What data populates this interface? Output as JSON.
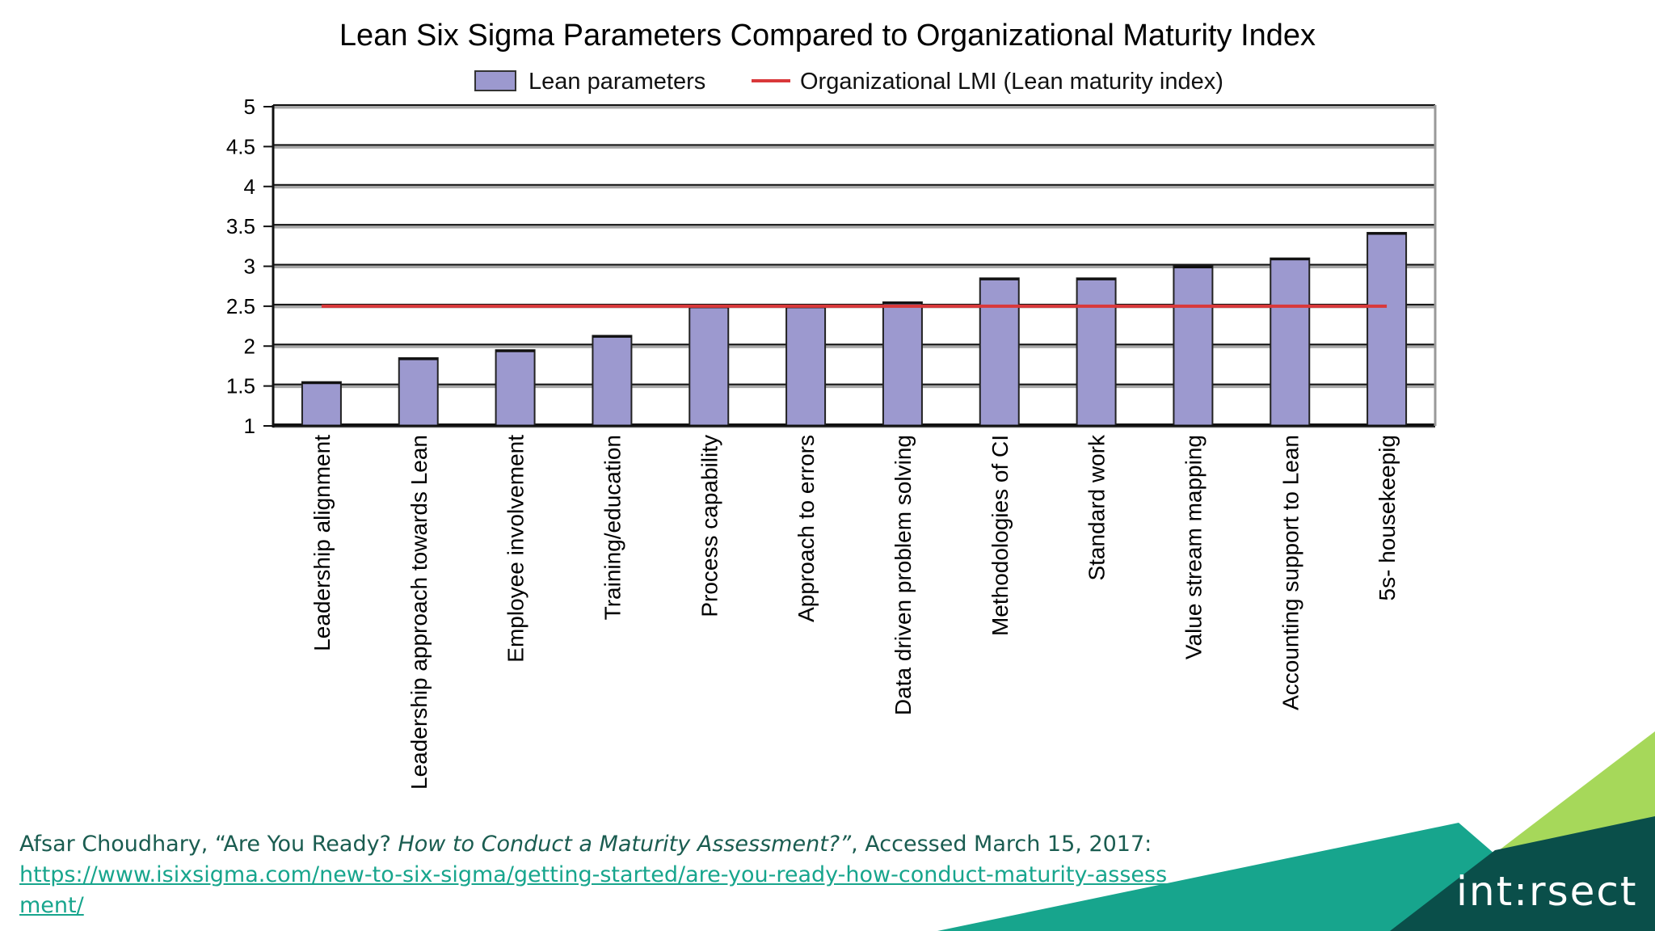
{
  "chart_data": {
    "type": "bar",
    "title": "Lean Six Sigma Parameters Compared to Organizational Maturity Index",
    "categories": [
      "Leadership alignment",
      "Leadership approach towards Lean",
      "Employee involvement",
      "Training/education",
      "Process capability",
      "Approach to errors",
      "Data driven problem solving",
      "Methodologies of CI",
      "Standard work",
      "Value stream mapping",
      "Accounting support to Lean",
      "5s- housekeepig"
    ],
    "series": [
      {
        "name": "Lean parameters",
        "type": "bar",
        "color": "#9c99cf",
        "values": [
          1.55,
          1.85,
          1.95,
          2.13,
          2.5,
          2.5,
          2.55,
          2.85,
          2.85,
          3.0,
          3.1,
          3.42
        ]
      },
      {
        "name": "Organizational LMI (Lean maturity index)",
        "type": "line",
        "color": "#d9383a",
        "values": [
          2.5,
          2.5,
          2.5,
          2.5,
          2.5,
          2.5,
          2.5,
          2.5,
          2.5,
          2.5,
          2.5,
          2.5
        ]
      }
    ],
    "ylim": [
      1,
      5
    ],
    "yticks": [
      "1",
      "1.5",
      "2",
      "2.5",
      "3",
      "3.5",
      "4",
      "4.5",
      "5"
    ],
    "xlabel": "",
    "ylabel": "",
    "grid": true,
    "legend_position": "top"
  },
  "citation": {
    "author": "Afsar Choudhary, “Are You Ready? ",
    "title": "How to Conduct a Maturity Assessment?”",
    "accessed": ", Accessed March 15, 2017:",
    "url": "https://www.isixsigma.com/new-to-six-sigma/getting-started/are-you-ready-how-conduct-maturity-assessment/"
  },
  "brand": {
    "logo_text": "int:rsect"
  },
  "colors": {
    "teal": "#17a58d",
    "dark_teal": "#0a4f4a",
    "lime": "#a6d85a"
  }
}
